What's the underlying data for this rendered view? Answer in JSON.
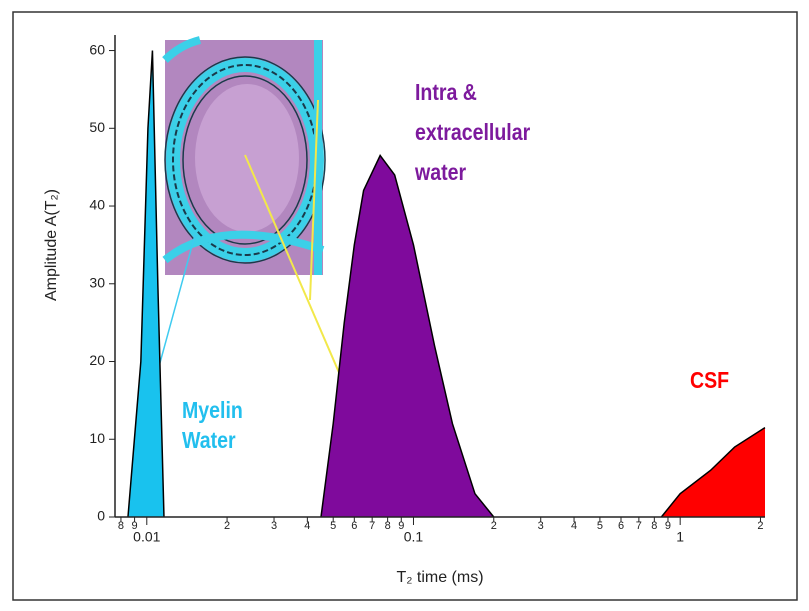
{
  "chart_data": {
    "type": "area",
    "xlabel": "T₂ time (ms)",
    "ylabel": "Amplitude  A(T₂)",
    "xscale": "log",
    "xlim": [
      0.0076,
      2.08
    ],
    "ylim": [
      0,
      62
    ],
    "yticks": [
      0,
      10,
      20,
      30,
      40,
      50,
      60
    ],
    "xticks": [
      {
        "value": 0.008,
        "label": "8"
      },
      {
        "value": 0.009,
        "label": "9"
      },
      0.01,
      {
        "value": 0.02,
        "label": "2"
      },
      {
        "value": 0.03,
        "label": "3"
      },
      {
        "value": 0.04,
        "label": "4"
      },
      {
        "value": 0.05,
        "label": "5"
      },
      {
        "value": 0.06,
        "label": "6"
      },
      {
        "value": 0.07,
        "label": "7"
      },
      {
        "value": 0.08,
        "label": "8"
      },
      {
        "value": 0.09,
        "label": "9"
      },
      0.1,
      {
        "value": 0.2,
        "label": "2"
      },
      {
        "value": 0.3,
        "label": "3"
      },
      {
        "value": 0.4,
        "label": "4"
      },
      {
        "value": 0.5,
        "label": "5"
      },
      {
        "value": 0.6,
        "label": "6"
      },
      {
        "value": 0.7,
        "label": "7"
      },
      {
        "value": 0.8,
        "label": "8"
      },
      {
        "value": 0.9,
        "label": "9"
      },
      1,
      {
        "value": 2,
        "label": "2"
      }
    ],
    "series": [
      {
        "name": "Myelin Water",
        "color": "#19c2ee",
        "text_color": "#22bfee",
        "x": [
          0.0085,
          0.0095,
          0.0101,
          0.0105,
          0.011,
          0.0116
        ],
        "values": [
          0,
          20,
          50,
          60,
          30,
          0
        ]
      },
      {
        "name": "Intra & extracellular water",
        "color": "#7f0a9c",
        "text_color": "#7d1a9d",
        "x": [
          0.045,
          0.05,
          0.055,
          0.06,
          0.065,
          0.075,
          0.085,
          0.1,
          0.12,
          0.14,
          0.17,
          0.2
        ],
        "values": [
          0,
          12,
          25,
          35,
          42,
          46.5,
          44,
          35,
          22,
          12,
          3,
          0
        ]
      },
      {
        "name": "CSF",
        "color": "#ff0000",
        "text_color": "#ff0000",
        "x": [
          0.85,
          1,
          1.3,
          1.6,
          2.08
        ],
        "values": [
          0,
          3,
          6,
          9,
          11.5
        ]
      }
    ]
  }
}
